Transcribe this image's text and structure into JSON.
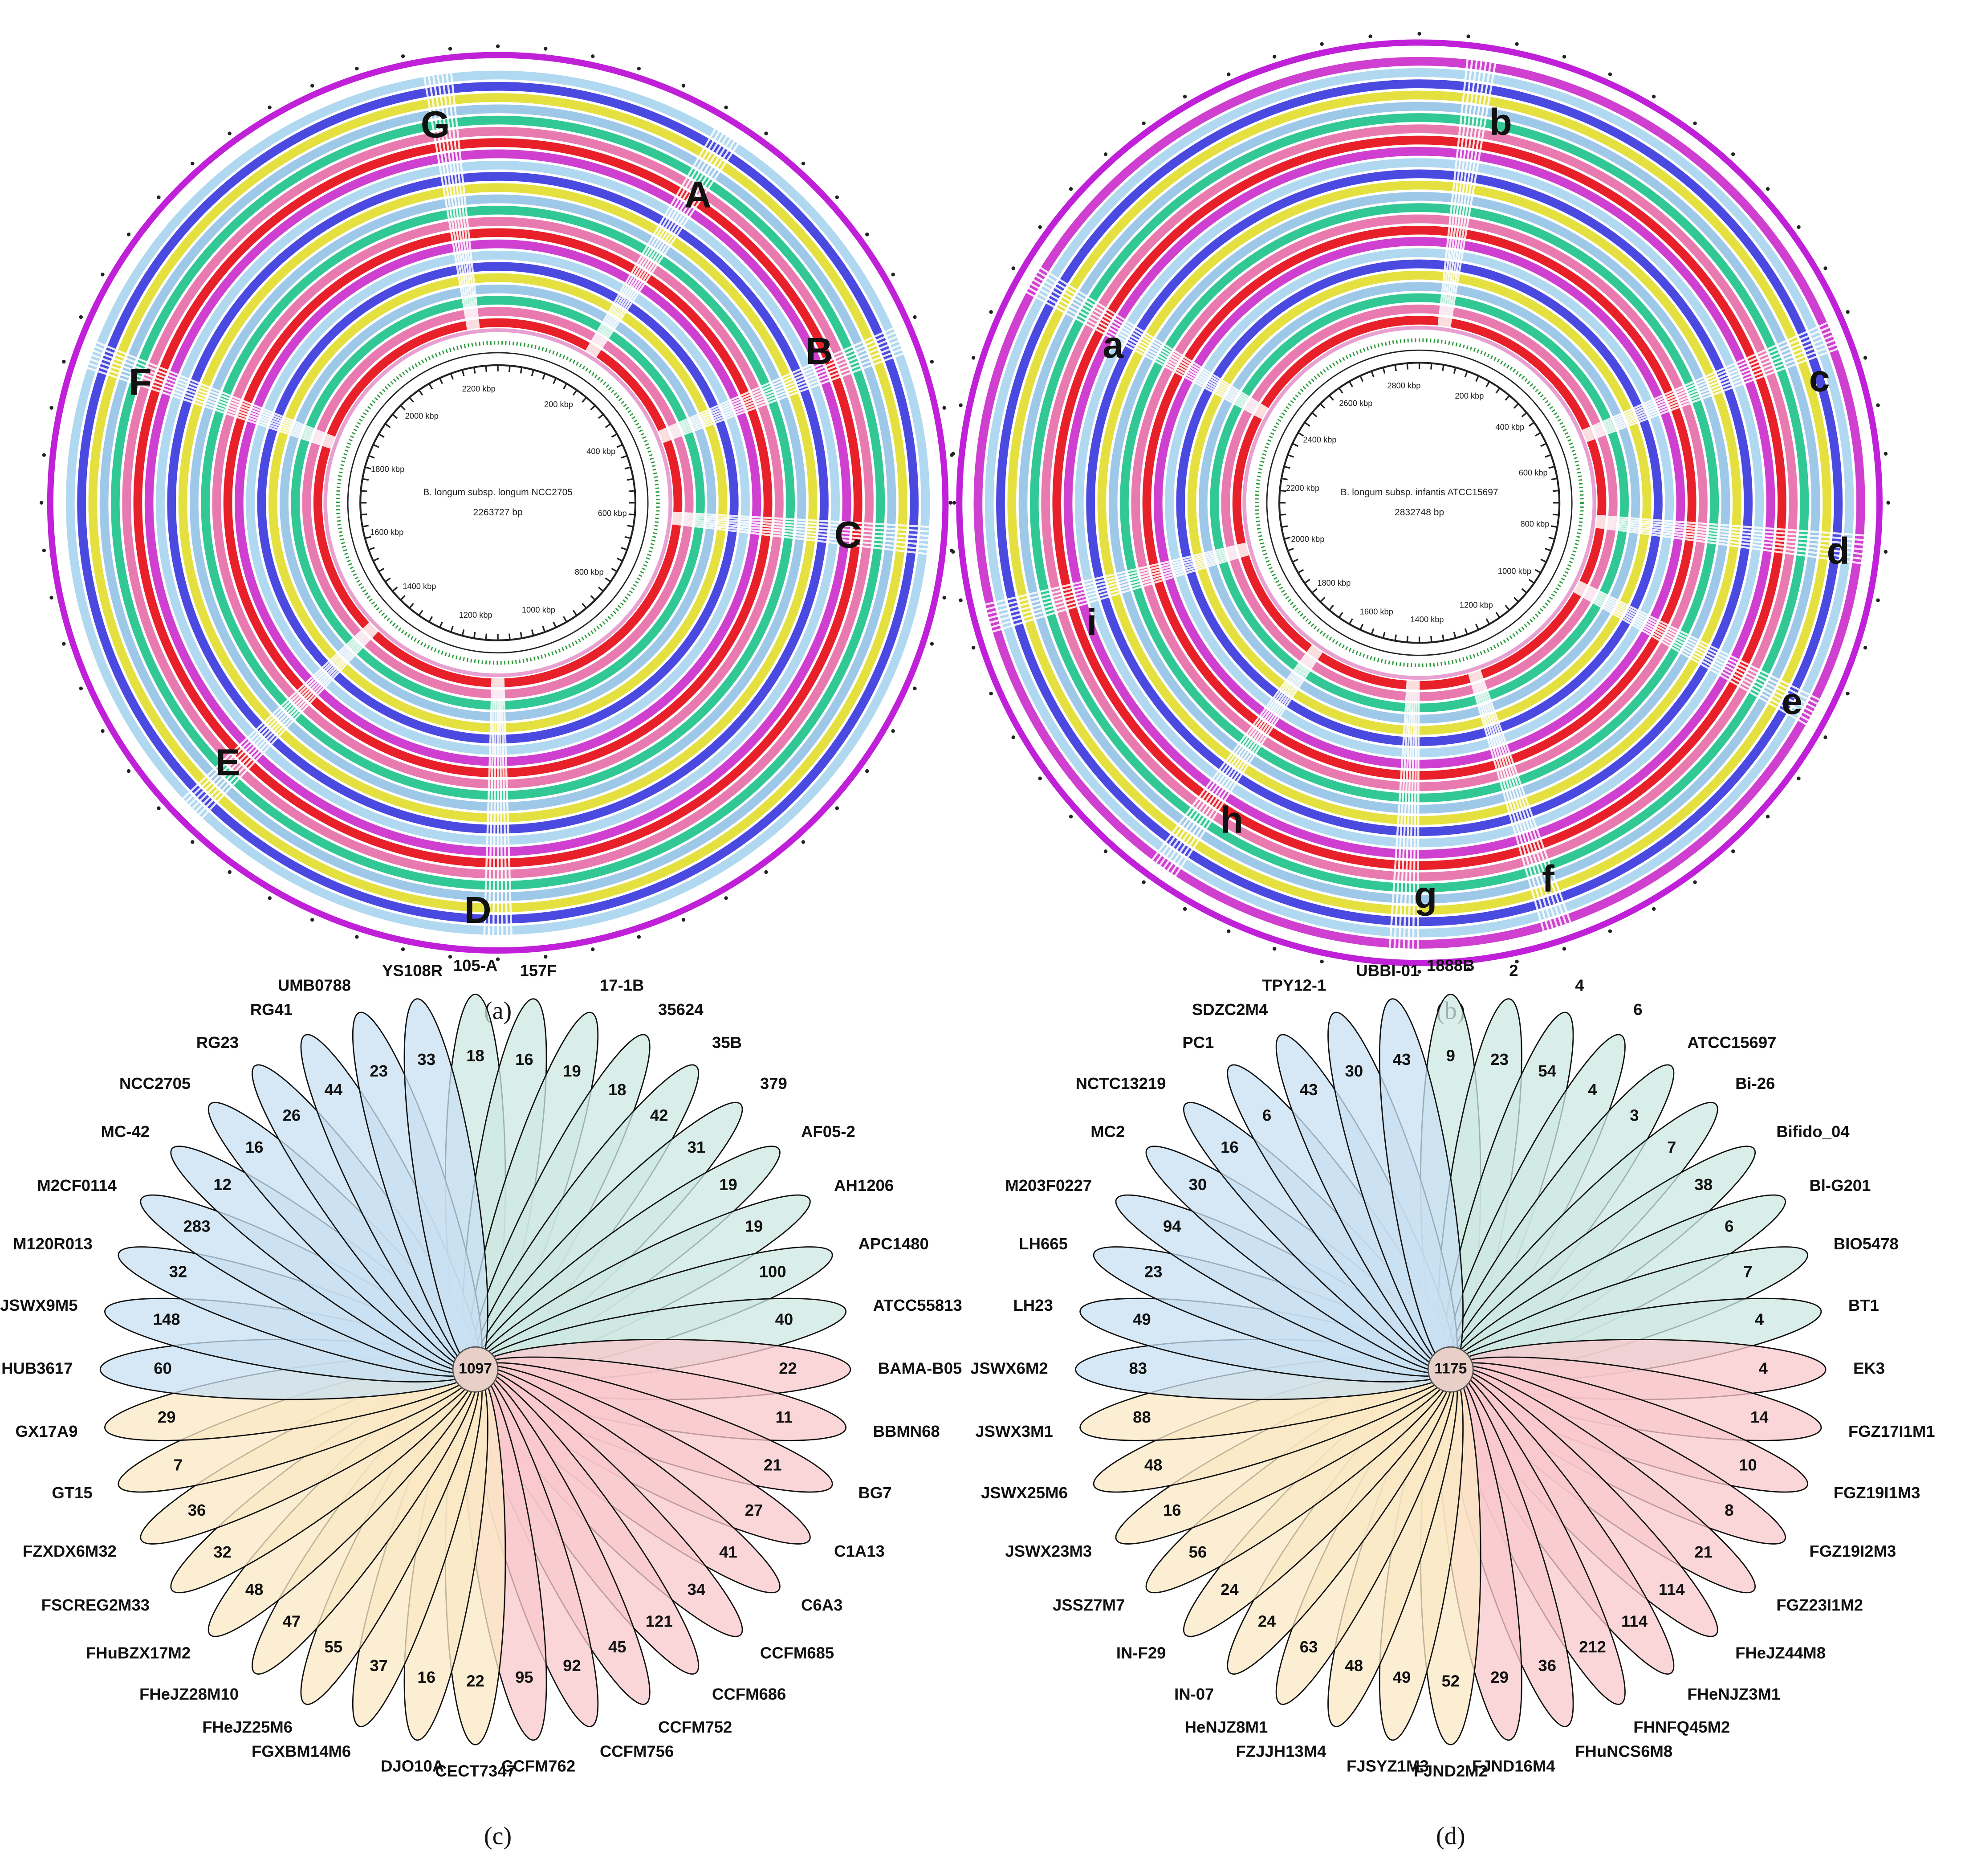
{
  "circular_maps": [
    {
      "panel_label": "(a)",
      "reference": "B. longum subsp. longum NCC2705",
      "genome_size": "2263727 bp",
      "scale_labels": [
        "200 kbp",
        "400 kbp",
        "600 kbp",
        "800 kbp",
        "1000 kbp",
        "1200 kbp",
        "1400 kbp",
        "1600 kbp",
        "1800 kbp",
        "2000 kbp",
        "2200 kbp"
      ],
      "region_labels": [
        "G",
        "A",
        "B",
        "C",
        "D",
        "E",
        "F"
      ]
    },
    {
      "panel_label": "(b)",
      "reference": "B. longum subsp. infantis ATCC15697",
      "genome_size": "2832748 bp",
      "scale_labels": [
        "200 kbp",
        "400 kbp",
        "600 kbp",
        "800 kbp",
        "1000 kbp",
        "1200 kbp",
        "1400 kbp",
        "1600 kbp",
        "1800 kbp",
        "2000 kbp",
        "2200 kbp",
        "2400 kbp",
        "2600 kbp",
        "2800 kbp"
      ],
      "region_labels": [
        "b",
        "a",
        "c",
        "d",
        "i",
        "e",
        "h",
        "g",
        "f"
      ]
    }
  ],
  "flower_plots": [
    {
      "panel_label": "(c)",
      "core": 1097,
      "strains": [
        "105-A",
        "157F",
        "17-1B",
        "35624",
        "35B",
        "379",
        "AF05-2",
        "AH1206",
        "APC1480",
        "ATCC55813",
        "BAMA-B05",
        "BBMN68",
        "BG7",
        "C1A13",
        "C6A3",
        "CCFM685",
        "CCFM686",
        "CCFM752",
        "CCFM756",
        "CCFM762",
        "CECT7347",
        "DJO10A",
        "FGXBM14M6",
        "FHeJZ25M6",
        "FHeJZ28M10",
        "FHuBZX17M2",
        "FSCREG2M33",
        "FZXDX6M32",
        "GT15",
        "GX17A9",
        "HUB3617",
        "JSWX9M5",
        "M120R013",
        "M2CF0114",
        "MC-42",
        "NCC2705",
        "RG23",
        "RG41",
        "UMB0788",
        "YS108R"
      ],
      "unique_genes": [
        18,
        16,
        19,
        18,
        42,
        31,
        19,
        19,
        100,
        40,
        22,
        11,
        21,
        27,
        41,
        34,
        121,
        45,
        92,
        95,
        22,
        16,
        37,
        55,
        47,
        48,
        32,
        36,
        7,
        29,
        60,
        148,
        32,
        283,
        12,
        16,
        26,
        44,
        23,
        33
      ]
    },
    {
      "panel_label": "(d)",
      "core": 1175,
      "strains": [
        "1888B",
        "2",
        "4",
        "6",
        "ATCC15697",
        "Bi-26",
        "Bifido_04",
        "Bl-G201",
        "BIO5478",
        "BT1",
        "EK3",
        "FGZ17I1M1",
        "FGZ19I1M3",
        "FGZ19I2M3",
        "FGZ23I1M2",
        "FHeJZ44M8",
        "FHeNJZ3M1",
        "FHNFQ45M2",
        "FHuNCS6M8",
        "FJND16M4",
        "FJND2M2",
        "FJSYZ1M3",
        "FZJJH13M4",
        "HeNJZ8M1",
        "IN-07",
        "IN-F29",
        "JSSZ7M7",
        "JSWX23M3",
        "JSWX25M6",
        "JSWX3M1",
        "JSWX6M2",
        "LH23",
        "LH665",
        "M203F0227",
        "MC2",
        "NCTC13219",
        "PC1",
        "SDZC2M4",
        "TPY12-1",
        "UBBI-01"
      ],
      "unique_genes": [
        9,
        23,
        54,
        4,
        3,
        7,
        38,
        6,
        7,
        4,
        4,
        14,
        10,
        8,
        21,
        114,
        114,
        212,
        36,
        29,
        52,
        49,
        48,
        63,
        24,
        24,
        56,
        16,
        48,
        88,
        83,
        49,
        23,
        94,
        30,
        16,
        6,
        43,
        30,
        43
      ]
    }
  ]
}
